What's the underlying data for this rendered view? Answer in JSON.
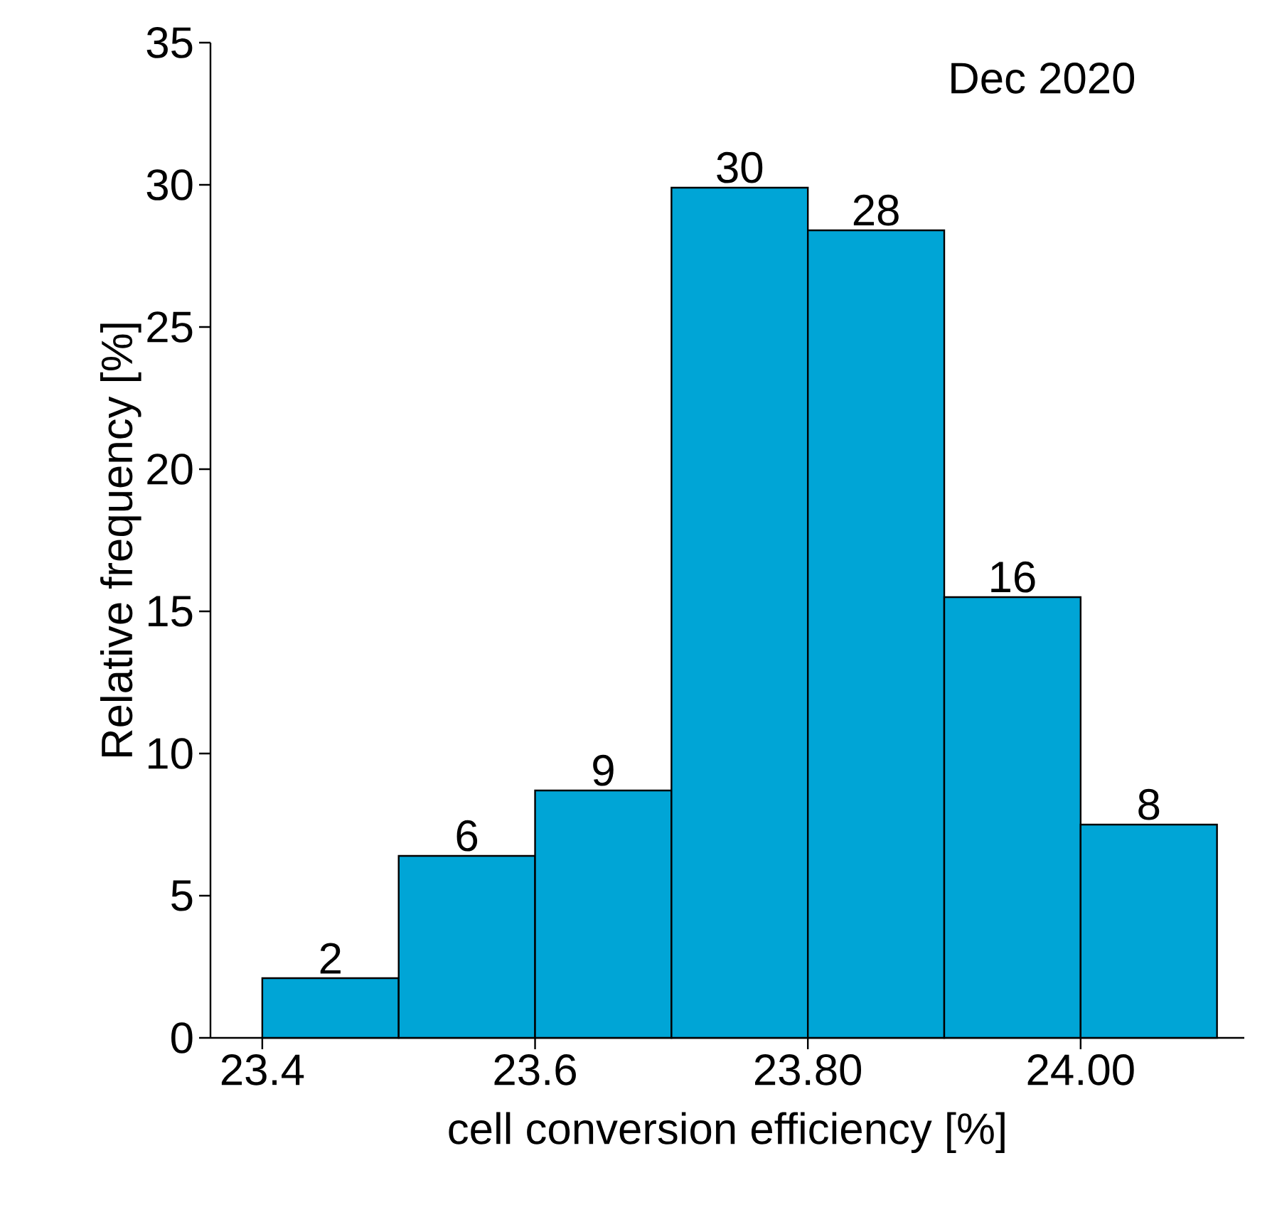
{
  "chart_data": {
    "type": "histogram",
    "xlabel": "cell conversion efficiency [%]",
    "ylabel": "Relative frequency [%]",
    "bins": [
      23.4,
      23.5,
      23.6,
      23.7,
      23.8,
      23.9,
      24.0,
      24.1
    ],
    "values": [
      2.1,
      6.4,
      8.7,
      29.9,
      28.4,
      15.5,
      7.5
    ],
    "value_labels": [
      "2",
      "6",
      "9",
      "30",
      "28",
      "16",
      "8"
    ],
    "color": "#00a5d6",
    "xlim": [
      23.362,
      24.12
    ],
    "ylim": [
      0,
      35
    ],
    "xticks": [
      23.4,
      23.6,
      {
        "value": 23.8,
        "label": "23.80"
      },
      {
        "value": 24.0,
        "label": "24.00"
      }
    ],
    "yticks": [
      0,
      5,
      10,
      15,
      20,
      25,
      30,
      35
    ],
    "annotations": [
      "Dec 2020"
    ]
  }
}
